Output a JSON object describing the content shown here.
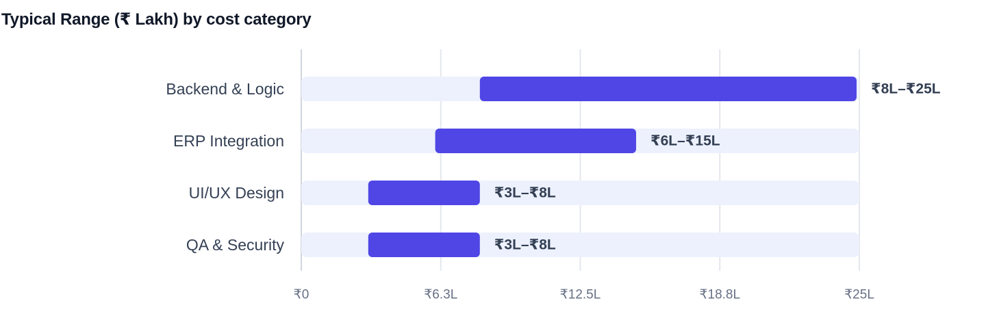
{
  "chart_data": {
    "type": "bar",
    "subtype": "floating-range-horizontal",
    "title": "Typical Range (₹ Lakh) by cost category",
    "xlabel": "",
    "ylabel": "",
    "xlim": [
      0,
      25
    ],
    "grid": true,
    "legend": "none",
    "x_ticks": [
      {
        "value": 0,
        "label": "₹0"
      },
      {
        "value": 6.25,
        "label": "₹6.3L"
      },
      {
        "value": 12.5,
        "label": "₹12.5L"
      },
      {
        "value": 18.75,
        "label": "₹18.8L"
      },
      {
        "value": 25,
        "label": "₹25L"
      }
    ],
    "categories": [
      "Backend & Logic",
      "ERP Integration",
      "UI/UX Design",
      "QA & Security"
    ],
    "series": [
      {
        "low": [
          8,
          6,
          3,
          3
        ],
        "high": [
          25,
          15,
          8,
          8
        ],
        "labels": [
          "₹8L–₹25L",
          "₹6L–₹15L",
          "₹3L–₹8L",
          "₹3L–₹8L"
        ]
      }
    ],
    "colors": {
      "bar": "#4f46e5",
      "track": "#edf1fd",
      "grid": "#e4e7ec",
      "axis": "#d0d5dd"
    }
  }
}
